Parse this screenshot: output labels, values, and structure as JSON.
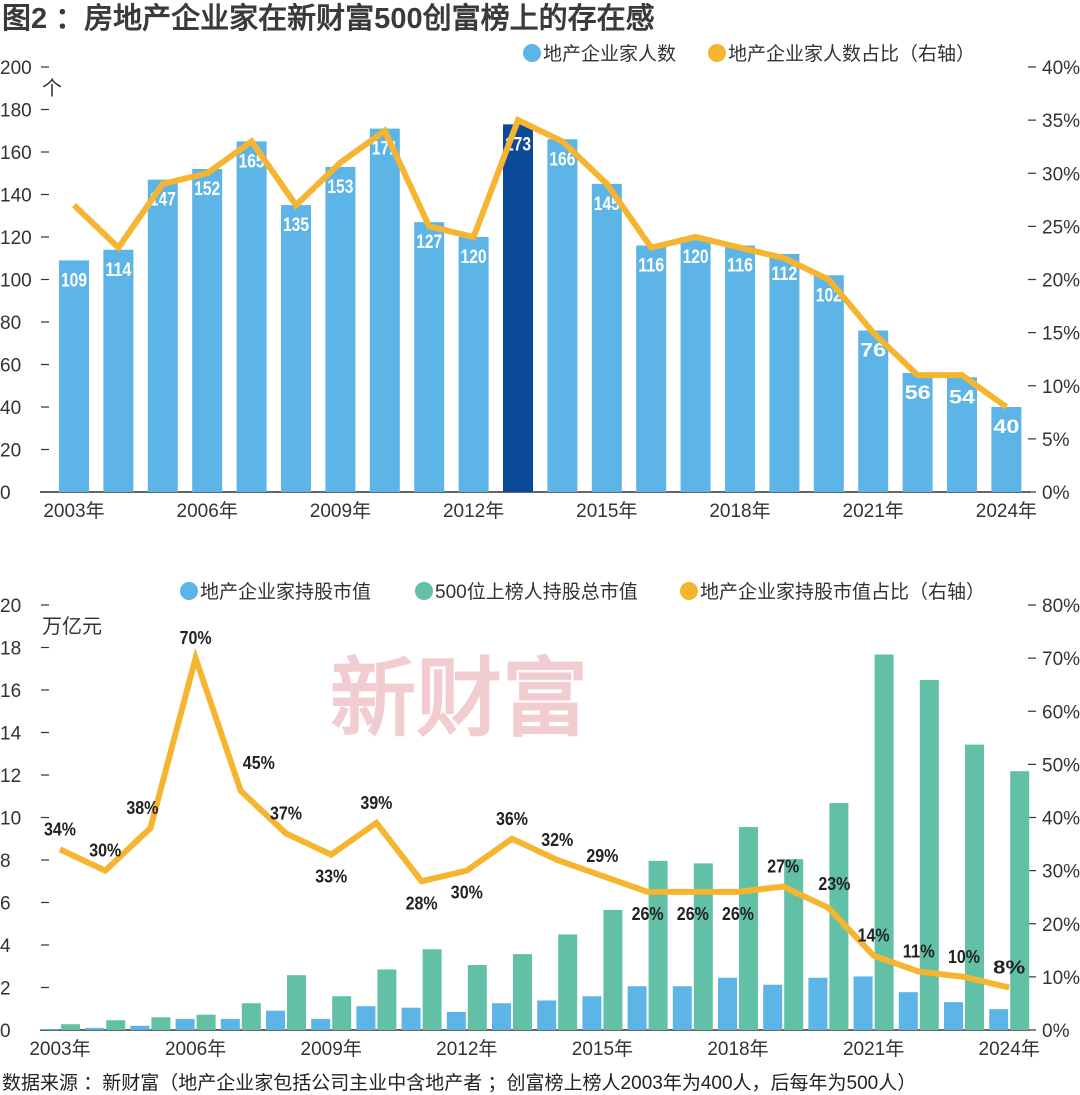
{
  "title": "图2 ：房地产企业家在新财富500创富榜上的存在感",
  "source": "数据来源 ：新财富（地产企业家包括公司主业中含地产者 ；创富榜上榜人2003年为400人，后每年为500人）",
  "watermark": "新财富",
  "colors": {
    "blue": "#5db4e6",
    "dark_blue": "#0b4a96",
    "green": "#62c0a6",
    "orange": "#f5b530"
  },
  "chart_data": [
    {
      "type": "bar",
      "title": "",
      "unit_left": "个",
      "legend": [
        "地产企业家人数",
        "地产企业家人数占比（右轴）"
      ],
      "legend_position": "top-right",
      "categories": [
        "2003",
        "2004",
        "2005",
        "2006",
        "2007",
        "2008",
        "2009",
        "2010",
        "2011",
        "2012",
        "2013",
        "2014",
        "2015",
        "2016",
        "2017",
        "2018",
        "2019",
        "2020",
        "2021",
        "2022",
        "2023",
        "2024"
      ],
      "x_tick_labels": [
        "2003年",
        "2006年",
        "2009年",
        "2012年",
        "2015年",
        "2018年",
        "2021年",
        "2024年"
      ],
      "ylim": [
        0,
        200
      ],
      "y_ticks": [
        "0",
        "20",
        "40",
        "60",
        "80",
        "100",
        "120",
        "140",
        "160",
        "180",
        "200"
      ],
      "y2lim": [
        0,
        40
      ],
      "y2_ticks": [
        "0%",
        "5%",
        "10%",
        "15%",
        "20%",
        "25%",
        "30%",
        "35%",
        "40%"
      ],
      "highlight_category": "2013",
      "series": [
        {
          "name": "地产企业家人数",
          "type": "bar",
          "axis": "left",
          "values": [
            109,
            114,
            147,
            152,
            165,
            135,
            153,
            171,
            127,
            120,
            173,
            166,
            145,
            116,
            120,
            116,
            112,
            102,
            76,
            56,
            54,
            40
          ]
        },
        {
          "name": "地产企业家人数占比（右轴）",
          "type": "line",
          "axis": "right",
          "values": [
            27,
            23,
            29,
            30,
            33,
            27,
            31,
            34,
            25,
            24,
            35,
            33,
            29,
            23,
            24,
            23,
            22,
            20,
            15,
            11,
            11,
            8
          ]
        }
      ]
    },
    {
      "type": "bar",
      "title": "",
      "unit_left": "万亿元",
      "legend": [
        "地产企业家持股市值",
        "500位上榜人持股总市值",
        "地产企业家持股市值占比（右轴）"
      ],
      "legend_position": "top-right",
      "categories": [
        "2003",
        "2004",
        "2005",
        "2006",
        "2007",
        "2008",
        "2009",
        "2010",
        "2011",
        "2012",
        "2013",
        "2014",
        "2015",
        "2016",
        "2017",
        "2018",
        "2019",
        "2020",
        "2021",
        "2022",
        "2023",
        "2024"
      ],
      "x_tick_labels": [
        "2003年",
        "2006年",
        "2009年",
        "2012年",
        "2015年",
        "2018年",
        "2021年",
        "2024年"
      ],
      "ylim": [
        0,
        20
      ],
      "y_ticks": [
        "0",
        "2",
        "4",
        "6",
        "8",
        "10",
        "12",
        "14",
        "16",
        "18",
        "20"
      ],
      "y2lim": [
        0,
        80
      ],
      "y2_ticks": [
        "0%",
        "10%",
        "20%",
        "30%",
        "40%",
        "50%",
        "60%",
        "70%",
        "80%"
      ],
      "series": [
        {
          "name": "地产企业家持股市值",
          "type": "bar",
          "axis": "left",
          "values": [
            0.05,
            0.1,
            0.2,
            0.52,
            0.52,
            0.91,
            0.52,
            1.12,
            1.05,
            0.85,
            1.26,
            1.39,
            1.59,
            2.06,
            2.06,
            2.46,
            2.13,
            2.46,
            2.52,
            1.78,
            1.31,
            0.98
          ]
        },
        {
          "name": "500位上榜人持股总市值",
          "type": "bar",
          "axis": "left",
          "values": [
            0.27,
            0.46,
            0.6,
            0.72,
            1.26,
            2.58,
            1.59,
            2.85,
            3.8,
            3.06,
            3.57,
            4.5,
            5.65,
            7.96,
            7.84,
            9.55,
            8.04,
            10.68,
            17.67,
            16.47,
            13.43,
            12.18
          ]
        },
        {
          "name": "地产企业家持股市值占比（右轴）",
          "type": "line",
          "axis": "right",
          "values": [
            34,
            30,
            38,
            70,
            45,
            37,
            33,
            39,
            28,
            30,
            36,
            32,
            29,
            26,
            26,
            26,
            27,
            23,
            14,
            11,
            10,
            8
          ],
          "labels": [
            "34%",
            "30%",
            "38%",
            "70%",
            "45%",
            "37%",
            "33%",
            "39%",
            "28%",
            "30%",
            "36%",
            "32%",
            "29%",
            "26%",
            "26%",
            "26%",
            "27%",
            "23%",
            "14%",
            "11%",
            "10%",
            "8%"
          ]
        }
      ]
    }
  ]
}
